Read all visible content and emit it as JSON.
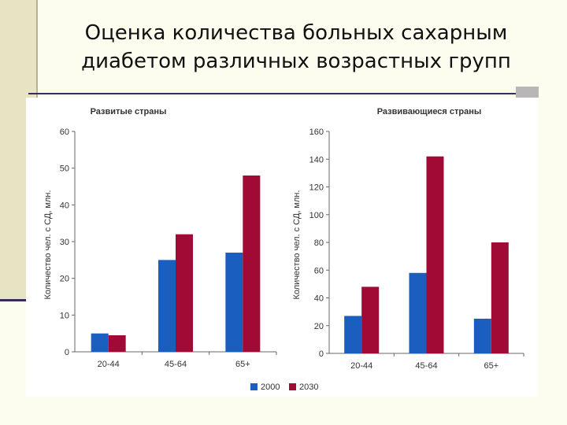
{
  "slide": {
    "title_line1": "Оценка количества больных сахарным",
    "title_line2": "диабетом различных возрастных групп"
  },
  "chart_data": [
    {
      "type": "bar",
      "title": "Развитые страны",
      "ylabel": "Количество чел. с СД, млн.",
      "categories": [
        "20-44",
        "45-64",
        "65+"
      ],
      "series": [
        {
          "name": "2000",
          "values": [
            5,
            25,
            27
          ],
          "color": "#1a5fc0"
        },
        {
          "name": "2030",
          "values": [
            4.5,
            32,
            48
          ],
          "color": "#a10a35"
        }
      ],
      "ylim": [
        0,
        60
      ],
      "yticks": [
        0,
        10,
        20,
        30,
        40,
        50,
        60
      ]
    },
    {
      "type": "bar",
      "title": "Развивающиеся страны",
      "ylabel": "Количество чел. с СД, млн.",
      "categories": [
        "20-44",
        "45-64",
        "65+"
      ],
      "series": [
        {
          "name": "2000",
          "values": [
            27,
            58,
            25
          ],
          "color": "#1a5fc0"
        },
        {
          "name": "2030",
          "values": [
            48,
            142,
            80
          ],
          "color": "#a10a35"
        }
      ],
      "ylim": [
        0,
        160
      ],
      "yticks": [
        0,
        20,
        40,
        60,
        80,
        100,
        120,
        140,
        160
      ]
    }
  ],
  "legend": {
    "placement": "bottom-right",
    "items": [
      {
        "label": "2000",
        "color": "#1a5fc0"
      },
      {
        "label": "2030",
        "color": "#a10a35"
      }
    ]
  }
}
